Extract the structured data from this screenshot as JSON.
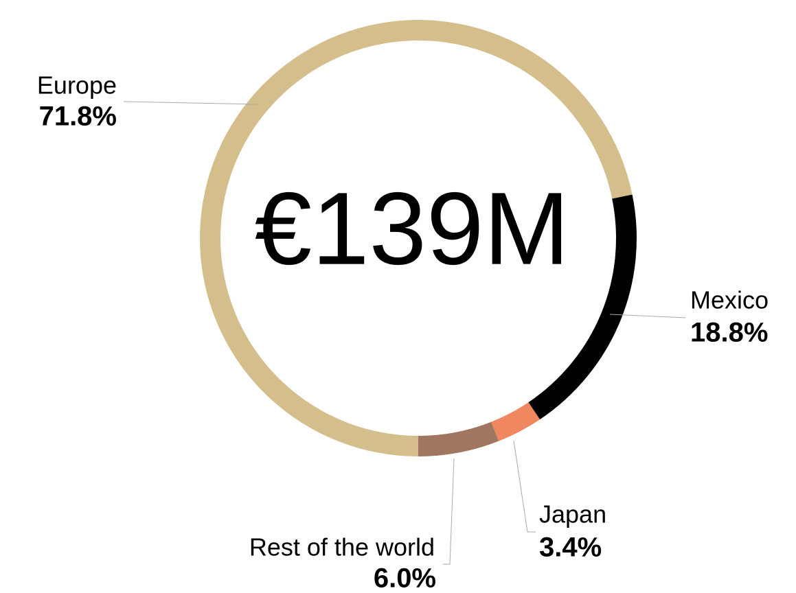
{
  "chart_data": {
    "type": "pie",
    "donut": true,
    "center_label": "€139M",
    "categories": [
      "Europe",
      "Mexico",
      "Japan",
      "Rest of the world"
    ],
    "values": [
      71.8,
      18.8,
      3.4,
      6.0
    ],
    "value_labels": [
      "71.8%",
      "18.8%",
      "3.4%",
      "6.0%"
    ],
    "colors": [
      "#d4bf8c",
      "#000000",
      "#f0875e",
      "#a07661"
    ]
  }
}
